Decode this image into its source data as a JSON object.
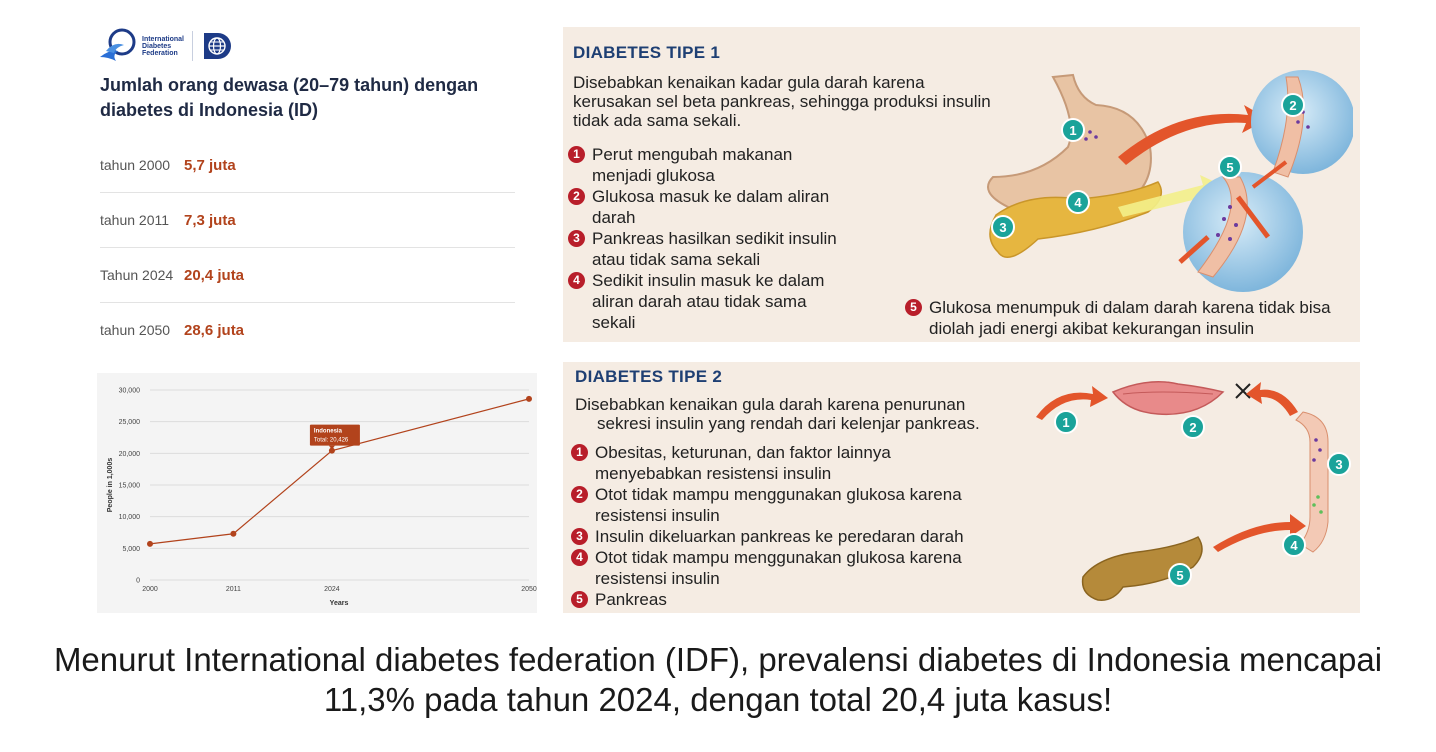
{
  "logo": {
    "org_name": "International Diabetes Federation"
  },
  "heading": "Jumlah orang dewasa (20–79 tahun) dengan diabetes di Indonesia (ID)",
  "stats": [
    {
      "year": "tahun 2000",
      "value": "5,7 juta"
    },
    {
      "year": "tahun 2011",
      "value": "7,3 juta"
    },
    {
      "year": "Tahun 2024",
      "value": "20,4 juta"
    },
    {
      "year": "tahun 2050",
      "value": "28,6 juta"
    }
  ],
  "chart_data": {
    "type": "line",
    "x": [
      "2000",
      "2011",
      "2024",
      "2050"
    ],
    "series": [
      {
        "name": "Indonesia",
        "values": [
          5700,
          7300,
          20426,
          28600
        ]
      }
    ],
    "xlabel": "Years",
    "ylabel": "People in 1,000s",
    "ylim": [
      0,
      30000
    ],
    "yticks": [
      "0",
      "5,000",
      "10,000",
      "15,000",
      "20,000",
      "25,000",
      "30,000"
    ],
    "grid": true,
    "tooltip": {
      "title": "Indonesia",
      "text": "Total: 20,426"
    },
    "line_color": "#b2431c"
  },
  "tipe1": {
    "title": "DIABETES TIPE 1",
    "desc": "Disebabkan kenaikan kadar gula darah karena kerusakan sel beta pankreas, sehingga produksi insulin tidak ada sama sekali.",
    "items": [
      {
        "num": "1",
        "text": "Perut mengubah makanan menjadi glukosa"
      },
      {
        "num": "2",
        "text": "Glukosa masuk ke dalam aliran darah"
      },
      {
        "num": "3",
        "text": "Pankreas hasilkan sedikit insulin atau tidak sama sekali"
      },
      {
        "num": "4",
        "text": "Sedikit insulin masuk ke dalam aliran darah atau tidak sama sekali"
      },
      {
        "num": "5",
        "text": "Glukosa menumpuk di dalam darah karena tidak bisa diolah jadi energi akibat kekurangan insulin"
      }
    ]
  },
  "tipe2": {
    "title": "DIABETES TIPE 2",
    "desc_line1": "Disebabkan kenaikan gula darah karena penurunan",
    "desc_line2": "sekresi insulin yang rendah dari kelenjar pankreas.",
    "items": [
      {
        "num": "1",
        "text": "Obesitas, keturunan, dan faktor lainnya menyebabkan resistensi insulin"
      },
      {
        "num": "2",
        "text": "Otot tidak mampu menggunakan glukosa karena resistensi insulin"
      },
      {
        "num": "3",
        "text": "Insulin dikeluarkan pankreas ke peredaran darah"
      },
      {
        "num": "4",
        "text": "Otot tidak mampu menggunakan glukosa karena resistensi insulin"
      },
      {
        "num": "5",
        "text": "Pankreas"
      }
    ]
  },
  "caption": "Menurut International diabetes federation (IDF), prevalensi diabetes di Indonesia mencapai 11,3% pada tahun 2024, dengan total 20,4 juta kasus!",
  "colors": {
    "panel_bg": "#f5ece3",
    "title_blue": "#1e3f73",
    "number_red": "#b81e2a",
    "badge_teal": "#1aa39a",
    "value_orange": "#b2431c"
  }
}
